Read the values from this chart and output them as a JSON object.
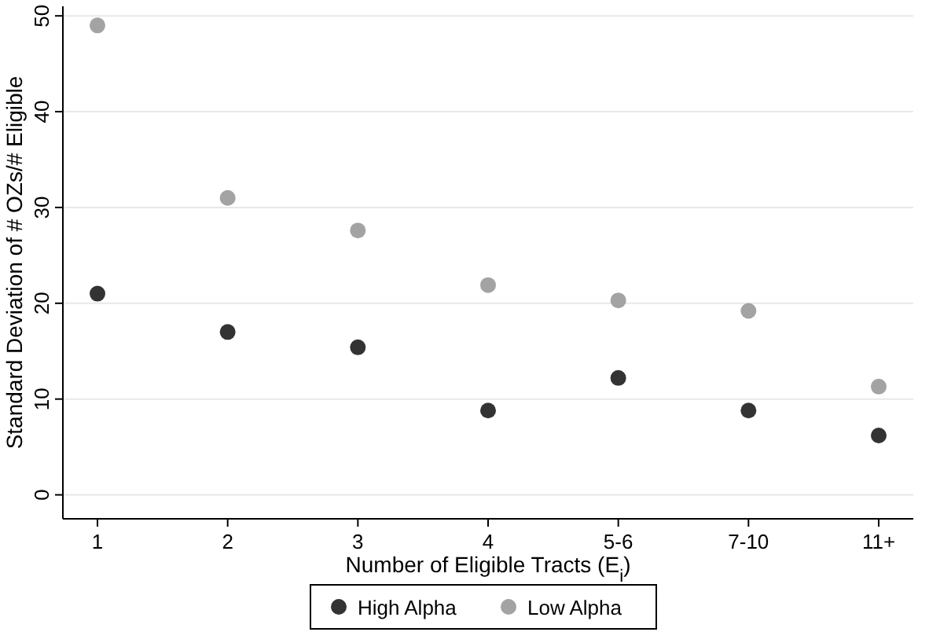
{
  "chart_data": {
    "type": "scatter",
    "xlabel": "Number of Eligible Tracts (E$_{i}$)",
    "ylabel": "Standard Deviation of # OZs/# Eligible",
    "categories": [
      "1",
      "2",
      "3",
      "4",
      "5-6",
      "7-10",
      "11+"
    ],
    "series": [
      {
        "name": "High Alpha",
        "color": "#333333",
        "values": [
          21,
          17,
          15.4,
          8.8,
          12.2,
          8.8,
          6.2
        ]
      },
      {
        "name": "Low Alpha",
        "color": "#a3a3a3",
        "values": [
          49,
          31,
          27.6,
          21.9,
          20.3,
          19.2,
          11.3
        ]
      }
    ],
    "ylim": [
      -2.5,
      51
    ],
    "yticks": [
      0,
      10,
      20,
      30,
      40,
      50
    ],
    "grid": "y",
    "legend": "bottom",
    "marker": "circle"
  }
}
